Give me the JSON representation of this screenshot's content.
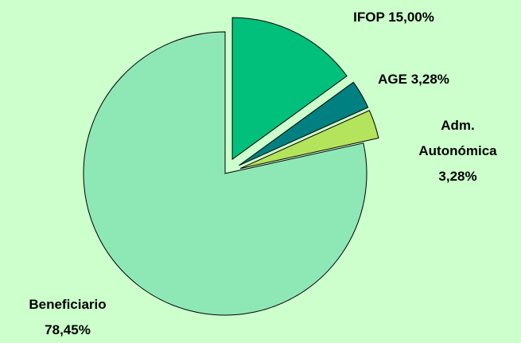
{
  "chart_data": {
    "type": "pie",
    "categories": [
      "IFOP",
      "AGE",
      "Adm. Autonómica",
      "Beneficiario"
    ],
    "values": [
      15.0,
      3.28,
      3.28,
      78.45
    ],
    "value_labels": [
      "15,00%",
      "3,28%",
      "3,28%",
      "78,45%"
    ],
    "colors": [
      "#00c07c",
      "#008080",
      "#b4e35c",
      "#8ee8b6"
    ]
  }
}
